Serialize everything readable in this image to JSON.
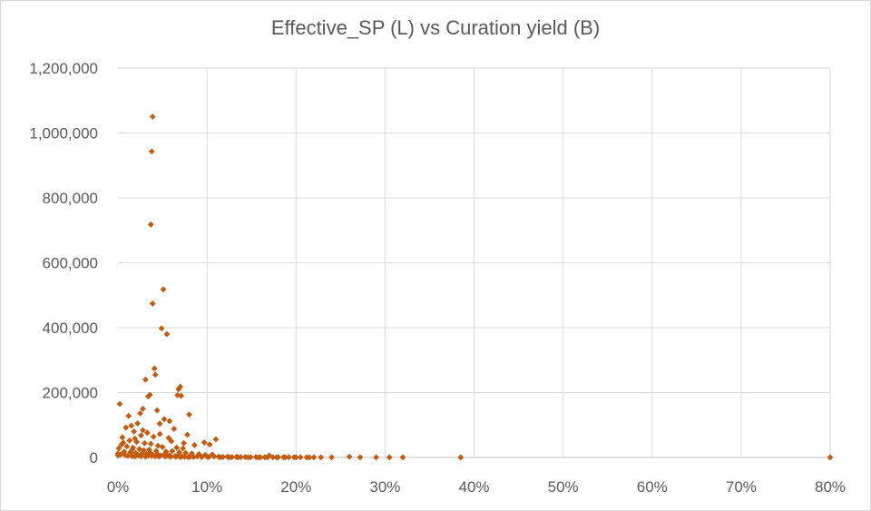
{
  "chart_data": {
    "type": "scatter",
    "title": "Effective_SP (L) vs Curation yield (B)",
    "xlabel": "",
    "ylabel": "",
    "xlim": [
      0,
      0.8
    ],
    "ylim": [
      0,
      1200000
    ],
    "x_ticks": [
      "0%",
      "10%",
      "20%",
      "30%",
      "40%",
      "50%",
      "60%",
      "70%",
      "80%"
    ],
    "x_tick_values": [
      0,
      0.1,
      0.2,
      0.3,
      0.4,
      0.5,
      0.6,
      0.7,
      0.8
    ],
    "y_ticks": [
      "0",
      "200,000",
      "400,000",
      "600,000",
      "800,000",
      "1,000,000",
      "1,200,000"
    ],
    "y_tick_values": [
      0,
      200000,
      400000,
      600000,
      800000,
      1000000,
      1200000
    ],
    "grid": true,
    "marker_color": "#C55A11",
    "series": [
      {
        "name": "",
        "points": [
          [
            0.039,
            1050000
          ],
          [
            0.038,
            943000
          ],
          [
            0.037,
            718000
          ],
          [
            0.051,
            518000
          ],
          [
            0.039,
            474000
          ],
          [
            0.049,
            398000
          ],
          [
            0.055,
            380000
          ],
          [
            0.041,
            274000
          ],
          [
            0.042,
            255000
          ],
          [
            0.031,
            240000
          ],
          [
            0.07,
            218000
          ],
          [
            0.068,
            210000
          ],
          [
            0.067,
            192000
          ],
          [
            0.071,
            190000
          ],
          [
            0.036,
            193000
          ],
          [
            0.034,
            188000
          ],
          [
            0.002,
            165000
          ],
          [
            0.08,
            132000
          ],
          [
            0.044,
            145000
          ],
          [
            0.012,
            128000
          ],
          [
            0.025,
            136000
          ],
          [
            0.028,
            150000
          ],
          [
            0.052,
            118000
          ],
          [
            0.058,
            112000
          ],
          [
            0.022,
            105000
          ],
          [
            0.015,
            98000
          ],
          [
            0.047,
            104000
          ],
          [
            0.009,
            92000
          ],
          [
            0.063,
            88000
          ],
          [
            0.018,
            80000
          ],
          [
            0.033,
            76000
          ],
          [
            0.078,
            70000
          ],
          [
            0.026,
            68000
          ],
          [
            0.005,
            62000
          ],
          [
            0.04,
            64000
          ],
          [
            0.057,
            60000
          ],
          [
            0.11,
            56000
          ],
          [
            0.097,
            46000
          ],
          [
            0.103,
            40000
          ],
          [
            0.086,
            38000
          ],
          [
            0.013,
            52000
          ],
          [
            0.021,
            48000
          ],
          [
            0.03,
            44000
          ],
          [
            0.037,
            42000
          ],
          [
            0.045,
            36000
          ],
          [
            0.05,
            32000
          ],
          [
            0.066,
            30000
          ],
          [
            0.073,
            28000
          ],
          [
            0.004,
            40000
          ],
          [
            0.01,
            34000
          ],
          [
            0.017,
            30000
          ],
          [
            0.024,
            26000
          ],
          [
            0.029,
            22000
          ],
          [
            0.035,
            24000
          ],
          [
            0.043,
            20000
          ],
          [
            0.054,
            18000
          ],
          [
            0.061,
            20000
          ],
          [
            0.069,
            16000
          ],
          [
            0.076,
            14000
          ],
          [
            0.083,
            12000
          ],
          [
            0.091,
            10000
          ],
          [
            0.098,
            8000
          ],
          [
            0.106,
            9000
          ],
          [
            0.001,
            28000
          ],
          [
            0.007,
            18000
          ],
          [
            0.014,
            16000
          ],
          [
            0.02,
            14000
          ],
          [
            0.027,
            12000
          ],
          [
            0.032,
            10000
          ],
          [
            0.039,
            8000
          ],
          [
            0.048,
            6000
          ],
          [
            0.056,
            5000
          ],
          [
            0.064,
            4000
          ],
          [
            0.072,
            3000
          ],
          [
            0.081,
            2000
          ],
          [
            0.089,
            3000
          ],
          [
            0.1,
            2000
          ],
          [
            0.108,
            3000
          ],
          [
            0.113,
            2000
          ],
          [
            0.118,
            1500
          ],
          [
            0.123,
            2000
          ],
          [
            0.128,
            1000
          ],
          [
            0.133,
            1500
          ],
          [
            0.138,
            1000
          ],
          [
            0.143,
            1200
          ],
          [
            0.149,
            800
          ],
          [
            0.155,
            1000
          ],
          [
            0.16,
            700
          ],
          [
            0.165,
            900
          ],
          [
            0.17,
            6000
          ],
          [
            0.174,
            600
          ],
          [
            0.18,
            800
          ],
          [
            0.186,
            500
          ],
          [
            0.192,
            600
          ],
          [
            0.198,
            400
          ],
          [
            0.205,
            500
          ],
          [
            0.212,
            400
          ],
          [
            0.22,
            300
          ],
          [
            0.228,
            400
          ],
          [
            0.24,
            300
          ],
          [
            0.26,
            2000
          ],
          [
            0.272,
            300
          ],
          [
            0.29,
            200
          ],
          [
            0.305,
            300
          ],
          [
            0.32,
            200
          ],
          [
            0.385,
            200
          ],
          [
            0.8,
            200
          ],
          [
            0.003,
            9000
          ],
          [
            0.008,
            7000
          ],
          [
            0.011,
            5000
          ],
          [
            0.016,
            4000
          ],
          [
            0.019,
            3000
          ],
          [
            0.023,
            6000
          ],
          [
            0.026,
            3500
          ],
          [
            0.031,
            2500
          ],
          [
            0.034,
            5500
          ],
          [
            0.038,
            4500
          ],
          [
            0.042,
            3500
          ],
          [
            0.046,
            2500
          ],
          [
            0.053,
            3000
          ],
          [
            0.059,
            2000
          ],
          [
            0.065,
            2500
          ],
          [
            0.07,
            1500
          ],
          [
            0.075,
            2000
          ],
          [
            0.079,
            1200
          ],
          [
            0.085,
            1500
          ],
          [
            0.094,
            1000
          ],
          [
            0.102,
            1200
          ],
          [
            0.115,
            800
          ],
          [
            0.125,
            600
          ],
          [
            0.135,
            500
          ],
          [
            0.146,
            600
          ],
          [
            0.158,
            400
          ],
          [
            0.168,
            500
          ],
          [
            0.178,
            300
          ],
          [
            0.188,
            400
          ],
          [
            0.2,
            300
          ],
          [
            0.215,
            200
          ],
          [
            0.0,
            12000
          ],
          [
            0.0,
            6000
          ],
          [
            0.006,
            45000
          ],
          [
            0.019,
            58000
          ],
          [
            0.028,
            84000
          ],
          [
            0.047,
            72000
          ],
          [
            0.06,
            50000
          ],
          [
            0.074,
            44000
          ],
          [
            0.016,
            24000
          ],
          [
            0.036,
            15000
          ],
          [
            0.044,
            11000
          ],
          [
            0.052,
            9000
          ],
          [
            0.058,
            7000
          ],
          [
            0.067,
            6000
          ]
        ]
      }
    ]
  }
}
